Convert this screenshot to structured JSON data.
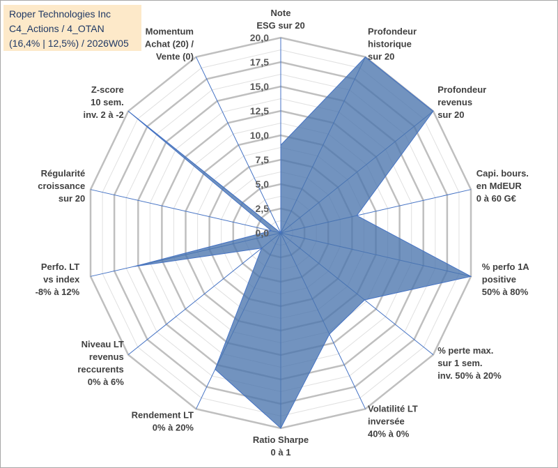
{
  "title": {
    "line1": "Roper Technologies Inc",
    "line2": "C4_Actions / 4_OTAN",
    "line3": "(16,4% | 12,5%) / 2026W05"
  },
  "chart_data": {
    "type": "radar",
    "rlim": [
      0,
      20
    ],
    "ticks": [
      "0,0",
      "2,5",
      "5,0",
      "7,5",
      "10,0",
      "12,5",
      "15,0",
      "17,5",
      "20,0"
    ],
    "axes": [
      {
        "label": [
          "Note",
          "ESG sur 20"
        ],
        "value": 9.0
      },
      {
        "label": [
          "Profondeur",
          "historique",
          "sur 20"
        ],
        "value": 20.0
      },
      {
        "label": [
          "Profondeur",
          "revenus",
          "sur 20"
        ],
        "value": 20.0
      },
      {
        "label": [
          "Capi. bours.",
          "en MdEUR",
          "0 à 60 G€"
        ],
        "value": 8.0
      },
      {
        "label": [
          "% perfo 1A",
          "positive",
          "50% à 80%"
        ],
        "value": 20.0
      },
      {
        "label": [
          "% perte max.",
          "sur 1 sem.",
          "inv. 50% à 20%"
        ],
        "value": 11.0
      },
      {
        "label": [
          "Volatilité LT",
          "inversée",
          "40% à 0%"
        ],
        "value": 11.5
      },
      {
        "label": [
          "Ratio Sharpe",
          "0 à 1"
        ],
        "value": 20.0
      },
      {
        "label": [
          "Rendement LT",
          "0% à 20%"
        ],
        "value": 15.5
      },
      {
        "label": [
          "Niveau LT",
          "revenus",
          "reccurents",
          "0% à 6%"
        ],
        "value": 2.5
      },
      {
        "label": [
          "Perfo. LT",
          "vs index",
          "-8% à 12%"
        ],
        "value": 15.5
      },
      {
        "label": [
          "Régularité",
          "croissance",
          "sur 20"
        ],
        "value": 1.0
      },
      {
        "label": [
          "Z-score",
          "10 sem.",
          "inv. 2 à -2"
        ],
        "value": 20.0
      },
      {
        "label": [
          "Momentum",
          "Achat (20) /",
          "Vente (0)"
        ],
        "value": 0.0
      }
    ],
    "colors": {
      "fill": "#4a75ad",
      "stroke": "#4472c4",
      "grid": "#bfbfbf",
      "minor_grid": "#e0e0e0"
    }
  }
}
